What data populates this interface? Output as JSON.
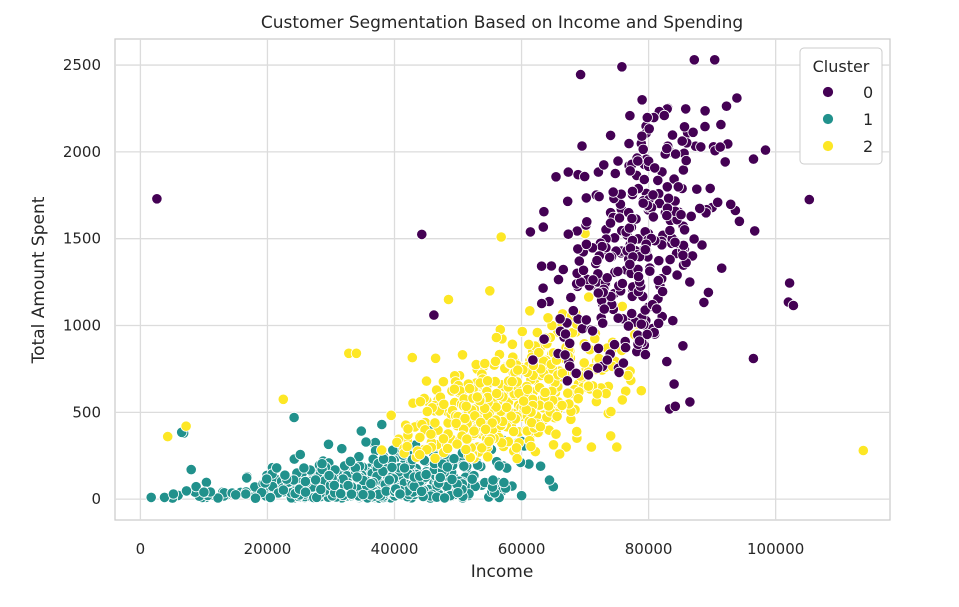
{
  "chart_data": {
    "type": "scatter",
    "title": "Customer Segmentation Based on Income and Spending",
    "xlabel": "Income",
    "ylabel": "Total Amount Spent",
    "xlim": [
      -4000,
      118000
    ],
    "ylim": [
      -120,
      2650
    ],
    "x_ticks": [
      0,
      20000,
      40000,
      60000,
      80000,
      100000
    ],
    "x_tick_labels": [
      "0",
      "20000",
      "40000",
      "60000",
      "80000",
      "100000"
    ],
    "y_ticks": [
      0,
      500,
      1000,
      1500,
      2000,
      2500
    ],
    "y_tick_labels": [
      "0",
      "500",
      "1000",
      "1500",
      "2000",
      "2500"
    ],
    "grid": true,
    "legend": {
      "title": "Cluster",
      "placement": "top-right"
    },
    "series": [
      {
        "name": "0",
        "color": "#440154",
        "cluster": {
          "x_mean": 78000,
          "x_sd": 7500,
          "y_mean": 1560,
          "y_sd": 390,
          "count": 380
        },
        "points": [
          [
            2600,
            1730
          ],
          [
            105300,
            1725
          ],
          [
            102200,
            1245
          ],
          [
            102000,
            1135
          ],
          [
            102800,
            1115
          ],
          [
            96500,
            810
          ],
          [
            87200,
            2530
          ],
          [
            90400,
            2530
          ],
          [
            75800,
            2490
          ],
          [
            69300,
            2445
          ],
          [
            91500,
            1330
          ],
          [
            94300,
            1600
          ],
          [
            98400,
            2010
          ],
          [
            83300,
            520
          ],
          [
            84200,
            535
          ],
          [
            86500,
            560
          ],
          [
            96700,
            1545
          ],
          [
            93900,
            2310
          ],
          [
            44300,
            1525
          ],
          [
            46200,
            1060
          ]
        ]
      },
      {
        "name": "1",
        "color": "#21918c",
        "cluster": {
          "x_mean": 37000,
          "x_sd": 11000,
          "y_mean": 110,
          "y_sd": 95,
          "count": 620
        },
        "points": [
          [
            1700,
            10
          ],
          [
            3800,
            10
          ],
          [
            5200,
            30
          ],
          [
            6800,
            380
          ],
          [
            6500,
            385
          ],
          [
            24200,
            470
          ],
          [
            38000,
            430
          ],
          [
            55500,
            110
          ],
          [
            60000,
            20
          ],
          [
            63000,
            190
          ],
          [
            64400,
            110
          ],
          [
            8000,
            170
          ],
          [
            10000,
            40
          ],
          [
            15000,
            25
          ]
        ]
      },
      {
        "name": "2",
        "color": "#fde725",
        "cluster": {
          "x_mean": 58000,
          "x_sd": 9000,
          "y_mean": 640,
          "y_sd": 220,
          "count": 520
        },
        "points": [
          [
            4300,
            360
          ],
          [
            7200,
            420
          ],
          [
            113800,
            280
          ],
          [
            22500,
            575
          ],
          [
            32800,
            840
          ],
          [
            34000,
            840
          ],
          [
            42800,
            815
          ],
          [
            56800,
            1510
          ],
          [
            55000,
            1200
          ],
          [
            48500,
            1150
          ],
          [
            70000,
            1530
          ],
          [
            68500,
            1070
          ],
          [
            71000,
            300
          ],
          [
            66000,
            260
          ],
          [
            73500,
            870
          ],
          [
            75000,
            300
          ]
        ]
      }
    ]
  }
}
